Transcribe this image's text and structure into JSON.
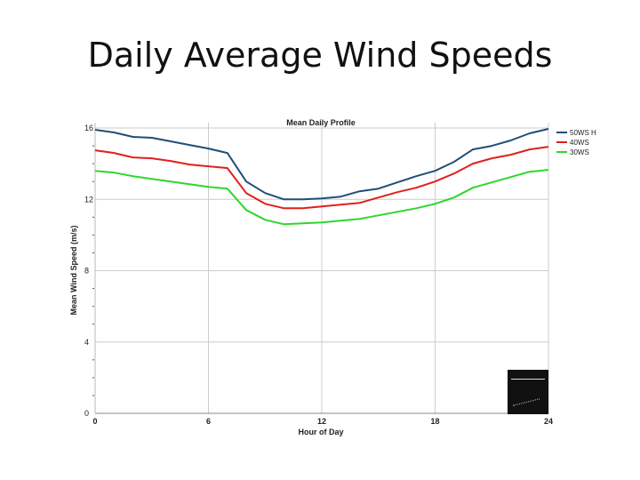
{
  "slide": {
    "title": "Daily Average Wind Speeds"
  },
  "chart_data": {
    "type": "line",
    "title": "Mean Daily Profile",
    "xlabel": "Hour of Day",
    "ylabel": "Mean Wind Speed (m/s)",
    "xlim": [
      0,
      24
    ],
    "ylim": [
      0,
      16
    ],
    "x_ticks": [
      0,
      6,
      12,
      18,
      24
    ],
    "y_ticks": [
      0,
      4,
      8,
      12,
      16
    ],
    "x_tick_labels": [
      "0",
      "6",
      "12",
      "18",
      "24"
    ],
    "y_tick_labels": [
      "0",
      "4",
      "8",
      "12",
      "16"
    ],
    "grid": true,
    "legend_position": "right",
    "x": [
      0,
      1,
      2,
      3,
      4,
      5,
      6,
      7,
      8,
      9,
      10,
      11,
      12,
      13,
      14,
      15,
      16,
      17,
      18,
      19,
      20,
      21,
      22,
      23,
      24
    ],
    "series": [
      {
        "name": "50WS H",
        "color": "#1f4e79",
        "values": [
          15.9,
          15.75,
          15.5,
          15.45,
          15.25,
          15.05,
          14.85,
          14.6,
          13.0,
          12.35,
          12.0,
          12.0,
          12.05,
          12.15,
          12.45,
          12.6,
          12.95,
          13.3,
          13.6,
          14.1,
          14.8,
          15.0,
          15.3,
          15.7,
          15.95
        ]
      },
      {
        "name": "40WS",
        "color": "#e0201c",
        "values": [
          14.75,
          14.6,
          14.35,
          14.3,
          14.15,
          13.95,
          13.85,
          13.75,
          12.35,
          11.75,
          11.5,
          11.5,
          11.6,
          11.7,
          11.8,
          12.1,
          12.4,
          12.65,
          13.0,
          13.45,
          14.0,
          14.3,
          14.5,
          14.8,
          14.95
        ]
      },
      {
        "name": "30WS",
        "color": "#2ed62e",
        "values": [
          13.6,
          13.5,
          13.3,
          13.15,
          13.0,
          12.85,
          12.7,
          12.6,
          11.4,
          10.85,
          10.6,
          10.65,
          10.7,
          10.8,
          10.9,
          11.1,
          11.3,
          11.5,
          11.75,
          12.1,
          12.65,
          12.95,
          13.25,
          13.55,
          13.65
        ]
      }
    ]
  }
}
